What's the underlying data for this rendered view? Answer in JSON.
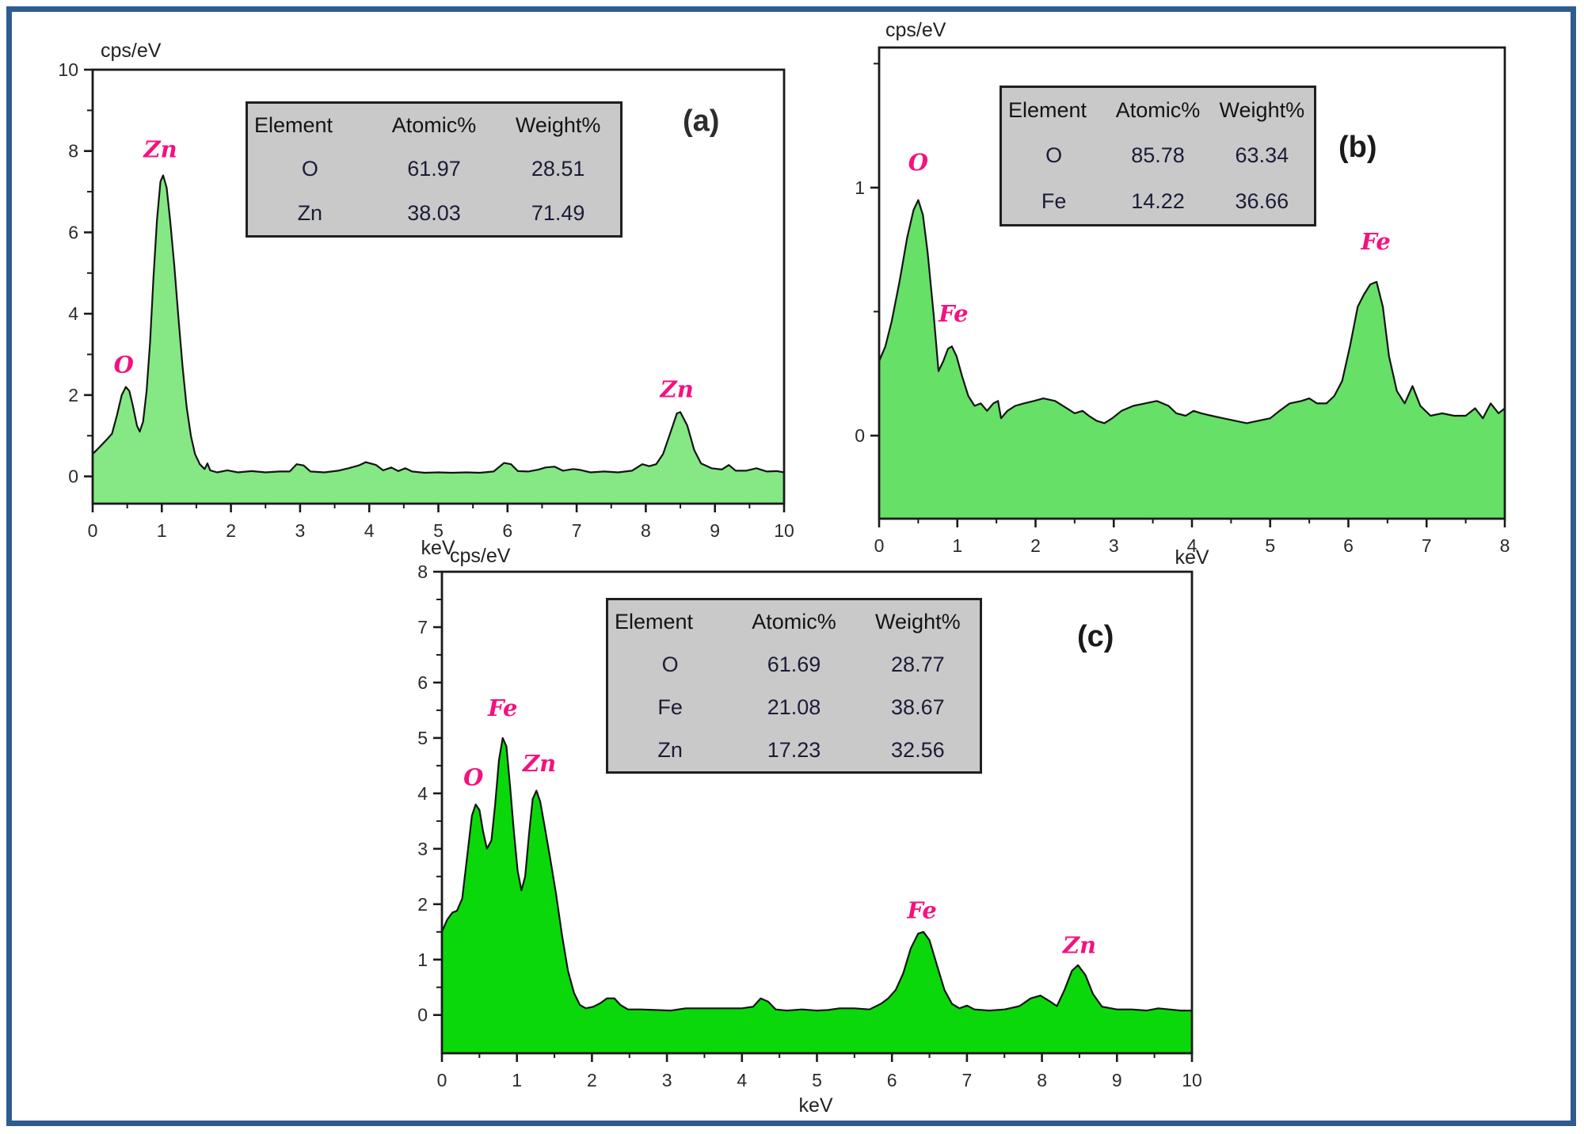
{
  "figure": {
    "border_color": "#2E5C8F",
    "background": "#FFFFFF",
    "axis_color": "#1a1a1a",
    "tick_label_color": "#2b2b2b",
    "peak_label_color": "#F5117E"
  },
  "chart_data": [
    {
      "id": "a",
      "type": "area",
      "panel_label": "(a)",
      "ylabel": "cps/eV",
      "xlabel": "keV",
      "xlim": [
        0,
        10
      ],
      "ylim": [
        -0.67,
        10
      ],
      "x_major_ticks": [
        0,
        1,
        2,
        3,
        4,
        5,
        6,
        7,
        8,
        9,
        10
      ],
      "x_minor_step": 0.5,
      "y_major_ticks": [
        0,
        2,
        4,
        6,
        8,
        10
      ],
      "y_minor_step": 1,
      "grid": false,
      "fill_color": "#85E885",
      "line_color": "#141414",
      "peak_labels": [
        {
          "text": "O",
          "x": 0.45,
          "y": 2.55
        },
        {
          "text": "Zn",
          "x": 0.98,
          "y": 7.85
        },
        {
          "text": "Zn",
          "x": 8.45,
          "y": 1.95
        }
      ],
      "points": [
        [
          0,
          0.55
        ],
        [
          0.1,
          0.72
        ],
        [
          0.2,
          0.9
        ],
        [
          0.28,
          1.05
        ],
        [
          0.35,
          1.5
        ],
        [
          0.42,
          2.0
        ],
        [
          0.48,
          2.2
        ],
        [
          0.53,
          2.1
        ],
        [
          0.58,
          1.75
        ],
        [
          0.64,
          1.25
        ],
        [
          0.68,
          1.1
        ],
        [
          0.73,
          1.35
        ],
        [
          0.78,
          2.1
        ],
        [
          0.83,
          3.3
        ],
        [
          0.88,
          4.9
        ],
        [
          0.93,
          6.3
        ],
        [
          0.98,
          7.25
        ],
        [
          1.02,
          7.4
        ],
        [
          1.07,
          7.1
        ],
        [
          1.12,
          6.3
        ],
        [
          1.18,
          5.2
        ],
        [
          1.24,
          3.9
        ],
        [
          1.3,
          2.7
        ],
        [
          1.36,
          1.7
        ],
        [
          1.42,
          1.0
        ],
        [
          1.48,
          0.55
        ],
        [
          1.55,
          0.3
        ],
        [
          1.62,
          0.18
        ],
        [
          1.66,
          0.32
        ],
        [
          1.7,
          0.15
        ],
        [
          1.8,
          0.1
        ],
        [
          1.95,
          0.15
        ],
        [
          2.1,
          0.1
        ],
        [
          2.3,
          0.13
        ],
        [
          2.5,
          0.1
        ],
        [
          2.7,
          0.12
        ],
        [
          2.85,
          0.12
        ],
        [
          2.95,
          0.3
        ],
        [
          3.05,
          0.27
        ],
        [
          3.15,
          0.12
        ],
        [
          3.35,
          0.1
        ],
        [
          3.55,
          0.14
        ],
        [
          3.7,
          0.2
        ],
        [
          3.85,
          0.27
        ],
        [
          3.95,
          0.35
        ],
        [
          4.1,
          0.28
        ],
        [
          4.2,
          0.15
        ],
        [
          4.32,
          0.22
        ],
        [
          4.42,
          0.13
        ],
        [
          4.52,
          0.2
        ],
        [
          4.62,
          0.12
        ],
        [
          4.8,
          0.09
        ],
        [
          5.0,
          0.1
        ],
        [
          5.2,
          0.09
        ],
        [
          5.4,
          0.1
        ],
        [
          5.6,
          0.09
        ],
        [
          5.8,
          0.12
        ],
        [
          5.95,
          0.33
        ],
        [
          6.05,
          0.3
        ],
        [
          6.15,
          0.13
        ],
        [
          6.3,
          0.12
        ],
        [
          6.45,
          0.17
        ],
        [
          6.55,
          0.22
        ],
        [
          6.68,
          0.24
        ],
        [
          6.8,
          0.14
        ],
        [
          6.95,
          0.18
        ],
        [
          7.05,
          0.16
        ],
        [
          7.2,
          0.1
        ],
        [
          7.4,
          0.12
        ],
        [
          7.6,
          0.1
        ],
        [
          7.8,
          0.14
        ],
        [
          7.95,
          0.3
        ],
        [
          8.05,
          0.25
        ],
        [
          8.15,
          0.3
        ],
        [
          8.25,
          0.55
        ],
        [
          8.35,
          1.05
        ],
        [
          8.45,
          1.55
        ],
        [
          8.5,
          1.58
        ],
        [
          8.6,
          1.25
        ],
        [
          8.7,
          0.65
        ],
        [
          8.8,
          0.32
        ],
        [
          8.95,
          0.2
        ],
        [
          9.1,
          0.17
        ],
        [
          9.2,
          0.28
        ],
        [
          9.3,
          0.14
        ],
        [
          9.45,
          0.14
        ],
        [
          9.6,
          0.2
        ],
        [
          9.75,
          0.12
        ],
        [
          9.9,
          0.13
        ],
        [
          10,
          0.1
        ]
      ],
      "table": {
        "columns": [
          "Element",
          "Atomic%",
          "Weight%"
        ],
        "rows": [
          [
            "O",
            "61.97",
            "28.51"
          ],
          [
            "Zn",
            "38.03",
            "71.49"
          ]
        ]
      }
    },
    {
      "id": "b",
      "type": "area",
      "panel_label": "(b)",
      "ylabel": "cps/eV",
      "xlabel": "keV",
      "xlim": [
        0,
        8
      ],
      "ylim": [
        -0.335,
        1.565
      ],
      "x_major_ticks": [
        0,
        1,
        2,
        3,
        4,
        5,
        6,
        7,
        8
      ],
      "x_minor_step": 0.5,
      "y_major_ticks": [
        0,
        1
      ],
      "y_minor_step": 0.5,
      "grid": false,
      "fill_color": "#66E066",
      "line_color": "#141414",
      "peak_labels": [
        {
          "text": "O",
          "x": 0.5,
          "y": 1.07
        },
        {
          "text": "Fe",
          "x": 0.95,
          "y": 0.46
        },
        {
          "text": "Fe",
          "x": 6.35,
          "y": 0.75
        }
      ],
      "points": [
        [
          0,
          0.3
        ],
        [
          0.08,
          0.36
        ],
        [
          0.16,
          0.46
        ],
        [
          0.26,
          0.62
        ],
        [
          0.36,
          0.8
        ],
        [
          0.44,
          0.91
        ],
        [
          0.5,
          0.95
        ],
        [
          0.56,
          0.89
        ],
        [
          0.62,
          0.74
        ],
        [
          0.7,
          0.48
        ],
        [
          0.76,
          0.26
        ],
        [
          0.82,
          0.3
        ],
        [
          0.88,
          0.35
        ],
        [
          0.93,
          0.36
        ],
        [
          0.99,
          0.32
        ],
        [
          1.06,
          0.24
        ],
        [
          1.14,
          0.16
        ],
        [
          1.22,
          0.12
        ],
        [
          1.3,
          0.13
        ],
        [
          1.38,
          0.1
        ],
        [
          1.46,
          0.13
        ],
        [
          1.52,
          0.14
        ],
        [
          1.56,
          0.07
        ],
        [
          1.64,
          0.1
        ],
        [
          1.74,
          0.12
        ],
        [
          1.85,
          0.13
        ],
        [
          1.98,
          0.14
        ],
        [
          2.1,
          0.15
        ],
        [
          2.25,
          0.14
        ],
        [
          2.4,
          0.11
        ],
        [
          2.5,
          0.09
        ],
        [
          2.6,
          0.1
        ],
        [
          2.68,
          0.08
        ],
        [
          2.78,
          0.06
        ],
        [
          2.88,
          0.05
        ],
        [
          2.98,
          0.07
        ],
        [
          3.1,
          0.1
        ],
        [
          3.25,
          0.12
        ],
        [
          3.4,
          0.13
        ],
        [
          3.55,
          0.14
        ],
        [
          3.7,
          0.12
        ],
        [
          3.8,
          0.09
        ],
        [
          3.92,
          0.08
        ],
        [
          4.02,
          0.1
        ],
        [
          4.12,
          0.09
        ],
        [
          4.25,
          0.08
        ],
        [
          4.4,
          0.07
        ],
        [
          4.55,
          0.06
        ],
        [
          4.7,
          0.05
        ],
        [
          4.85,
          0.06
        ],
        [
          5.0,
          0.07
        ],
        [
          5.12,
          0.1
        ],
        [
          5.25,
          0.13
        ],
        [
          5.4,
          0.14
        ],
        [
          5.5,
          0.15
        ],
        [
          5.6,
          0.13
        ],
        [
          5.72,
          0.13
        ],
        [
          5.82,
          0.16
        ],
        [
          5.92,
          0.22
        ],
        [
          6.02,
          0.36
        ],
        [
          6.12,
          0.52
        ],
        [
          6.2,
          0.57
        ],
        [
          6.28,
          0.61
        ],
        [
          6.36,
          0.62
        ],
        [
          6.44,
          0.52
        ],
        [
          6.52,
          0.32
        ],
        [
          6.62,
          0.18
        ],
        [
          6.72,
          0.13
        ],
        [
          6.82,
          0.2
        ],
        [
          6.92,
          0.12
        ],
        [
          7.05,
          0.08
        ],
        [
          7.2,
          0.09
        ],
        [
          7.35,
          0.08
        ],
        [
          7.5,
          0.08
        ],
        [
          7.62,
          0.11
        ],
        [
          7.72,
          0.07
        ],
        [
          7.82,
          0.13
        ],
        [
          7.92,
          0.09
        ],
        [
          8,
          0.11
        ]
      ],
      "table": {
        "columns": [
          "Element",
          "Atomic%",
          "Weight%"
        ],
        "rows": [
          [
            "O",
            "85.78",
            "63.34"
          ],
          [
            "Fe",
            "14.22",
            "36.66"
          ]
        ]
      }
    },
    {
      "id": "c",
      "type": "area",
      "panel_label": "(c)",
      "ylabel": "cps/eV",
      "xlabel": "keV",
      "xlim": [
        0,
        10
      ],
      "ylim": [
        -0.69,
        8
      ],
      "x_major_ticks": [
        0,
        1,
        2,
        3,
        4,
        5,
        6,
        7,
        8,
        9,
        10
      ],
      "x_minor_step": 0.5,
      "y_major_ticks": [
        0,
        1,
        2,
        3,
        4,
        5,
        6,
        7,
        8
      ],
      "y_minor_step": 0.5,
      "grid": false,
      "fill_color": "#0BD80B",
      "line_color": "#141414",
      "peak_labels": [
        {
          "text": "O",
          "x": 0.42,
          "y": 4.15
        },
        {
          "text": "Fe",
          "x": 0.81,
          "y": 5.4
        },
        {
          "text": "Zn",
          "x": 1.3,
          "y": 4.4
        },
        {
          "text": "Fe",
          "x": 6.4,
          "y": 1.75
        },
        {
          "text": "Zn",
          "x": 8.5,
          "y": 1.12
        }
      ],
      "points": [
        [
          0,
          1.5
        ],
        [
          0.07,
          1.72
        ],
        [
          0.14,
          1.85
        ],
        [
          0.2,
          1.88
        ],
        [
          0.27,
          2.1
        ],
        [
          0.34,
          2.9
        ],
        [
          0.4,
          3.6
        ],
        [
          0.45,
          3.8
        ],
        [
          0.5,
          3.7
        ],
        [
          0.55,
          3.3
        ],
        [
          0.6,
          3.0
        ],
        [
          0.66,
          3.15
        ],
        [
          0.71,
          3.8
        ],
        [
          0.76,
          4.6
        ],
        [
          0.81,
          5.0
        ],
        [
          0.86,
          4.85
        ],
        [
          0.91,
          4.1
        ],
        [
          0.96,
          3.3
        ],
        [
          1.01,
          2.6
        ],
        [
          1.06,
          2.25
        ],
        [
          1.11,
          2.5
        ],
        [
          1.16,
          3.25
        ],
        [
          1.21,
          3.9
        ],
        [
          1.26,
          4.05
        ],
        [
          1.31,
          3.85
        ],
        [
          1.37,
          3.4
        ],
        [
          1.44,
          2.85
        ],
        [
          1.52,
          2.2
        ],
        [
          1.6,
          1.45
        ],
        [
          1.68,
          0.8
        ],
        [
          1.76,
          0.4
        ],
        [
          1.84,
          0.18
        ],
        [
          1.92,
          0.12
        ],
        [
          2.02,
          0.15
        ],
        [
          2.12,
          0.22
        ],
        [
          2.2,
          0.3
        ],
        [
          2.3,
          0.3
        ],
        [
          2.38,
          0.18
        ],
        [
          2.48,
          0.1
        ],
        [
          2.65,
          0.1
        ],
        [
          2.85,
          0.09
        ],
        [
          3.05,
          0.08
        ],
        [
          3.25,
          0.12
        ],
        [
          3.5,
          0.12
        ],
        [
          3.75,
          0.12
        ],
        [
          4.0,
          0.12
        ],
        [
          4.15,
          0.15
        ],
        [
          4.25,
          0.3
        ],
        [
          4.35,
          0.24
        ],
        [
          4.45,
          0.1
        ],
        [
          4.6,
          0.08
        ],
        [
          4.8,
          0.1
        ],
        [
          5.0,
          0.08
        ],
        [
          5.15,
          0.09
        ],
        [
          5.3,
          0.12
        ],
        [
          5.5,
          0.12
        ],
        [
          5.7,
          0.1
        ],
        [
          5.85,
          0.2
        ],
        [
          5.95,
          0.3
        ],
        [
          6.05,
          0.45
        ],
        [
          6.15,
          0.75
        ],
        [
          6.25,
          1.2
        ],
        [
          6.35,
          1.47
        ],
        [
          6.42,
          1.5
        ],
        [
          6.5,
          1.35
        ],
        [
          6.6,
          0.9
        ],
        [
          6.7,
          0.45
        ],
        [
          6.8,
          0.2
        ],
        [
          6.9,
          0.12
        ],
        [
          7.0,
          0.17
        ],
        [
          7.1,
          0.1
        ],
        [
          7.3,
          0.08
        ],
        [
          7.5,
          0.1
        ],
        [
          7.7,
          0.16
        ],
        [
          7.85,
          0.3
        ],
        [
          7.98,
          0.35
        ],
        [
          8.1,
          0.25
        ],
        [
          8.2,
          0.16
        ],
        [
          8.3,
          0.45
        ],
        [
          8.4,
          0.8
        ],
        [
          8.48,
          0.9
        ],
        [
          8.58,
          0.72
        ],
        [
          8.68,
          0.38
        ],
        [
          8.8,
          0.15
        ],
        [
          9.0,
          0.1
        ],
        [
          9.2,
          0.1
        ],
        [
          9.4,
          0.08
        ],
        [
          9.55,
          0.12
        ],
        [
          9.7,
          0.1
        ],
        [
          9.85,
          0.08
        ],
        [
          10,
          0.08
        ]
      ],
      "table": {
        "columns": [
          "Element",
          "Atomic%",
          "Weight%"
        ],
        "rows": [
          [
            "O",
            "61.69",
            "28.77"
          ],
          [
            "Fe",
            "21.08",
            "38.67"
          ],
          [
            "Zn",
            "17.23",
            "32.56"
          ]
        ]
      }
    }
  ]
}
